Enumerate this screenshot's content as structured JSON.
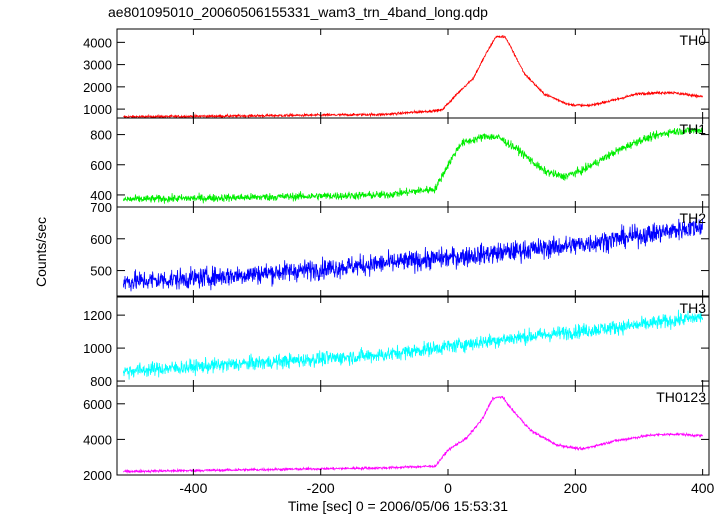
{
  "title": "ae801095010_20060506155331_wam3_trn_4band_long.qdp",
  "ylabel": "Counts/sec",
  "xlabel": "Time [sec] 0 = 2006/05/06 15:53:31",
  "chart_data": {
    "type": "line",
    "x_range": [
      -520,
      410
    ],
    "x_ticks": [
      -400,
      -200,
      0,
      200,
      400
    ],
    "panels": [
      {
        "name": "TH0",
        "color": "#ff0000",
        "ylim": [
          600,
          4600
        ],
        "yticks": [
          1000,
          2000,
          3000,
          4000
        ],
        "noise": 40,
        "keypoints": [
          [
            -510,
            650
          ],
          [
            -300,
            700
          ],
          [
            -100,
            760
          ],
          [
            -10,
            950
          ],
          [
            20,
            1850
          ],
          [
            40,
            2400
          ],
          [
            60,
            3500
          ],
          [
            75,
            4250
          ],
          [
            90,
            4250
          ],
          [
            100,
            3700
          ],
          [
            120,
            2600
          ],
          [
            150,
            1700
          ],
          [
            190,
            1200
          ],
          [
            220,
            1150
          ],
          [
            260,
            1400
          ],
          [
            300,
            1700
          ],
          [
            350,
            1750
          ],
          [
            390,
            1600
          ],
          [
            400,
            1550
          ]
        ]
      },
      {
        "name": "TH1",
        "color": "#00ee00",
        "ylim": [
          320,
          910
        ],
        "yticks": [
          400,
          600,
          800
        ],
        "noise": 18,
        "keypoints": [
          [
            -510,
            370
          ],
          [
            -300,
            385
          ],
          [
            -100,
            400
          ],
          [
            -20,
            440
          ],
          [
            0,
            600
          ],
          [
            20,
            740
          ],
          [
            60,
            790
          ],
          [
            80,
            780
          ],
          [
            110,
            700
          ],
          [
            150,
            560
          ],
          [
            180,
            520
          ],
          [
            210,
            560
          ],
          [
            260,
            680
          ],
          [
            300,
            760
          ],
          [
            350,
            820
          ],
          [
            400,
            830
          ]
        ]
      },
      {
        "name": "TH2",
        "color": "#0000ff",
        "ylim": [
          420,
          700
        ],
        "yticks": [
          500,
          600,
          700
        ],
        "noise": 22,
        "keypoints": [
          [
            -510,
            465
          ],
          [
            -400,
            475
          ],
          [
            -200,
            505
          ],
          [
            0,
            540
          ],
          [
            200,
            580
          ],
          [
            400,
            640
          ]
        ]
      },
      {
        "name": "TH3",
        "color": "#00ffff",
        "ylim": [
          770,
          1310
        ],
        "yticks": [
          800,
          1000,
          1200
        ],
        "noise": 30,
        "keypoints": [
          [
            -510,
            860
          ],
          [
            -300,
            910
          ],
          [
            -100,
            960
          ],
          [
            100,
            1060
          ],
          [
            300,
            1140
          ],
          [
            400,
            1190
          ]
        ]
      },
      {
        "name": "TH0123",
        "color": "#ff00ff",
        "ylim": [
          2000,
          7000
        ],
        "yticks": [
          2000,
          4000,
          6000
        ],
        "noise": 50,
        "keypoints": [
          [
            -510,
            2200
          ],
          [
            -300,
            2300
          ],
          [
            -100,
            2400
          ],
          [
            -20,
            2500
          ],
          [
            0,
            3400
          ],
          [
            30,
            4100
          ],
          [
            55,
            5200
          ],
          [
            70,
            6300
          ],
          [
            85,
            6400
          ],
          [
            100,
            5700
          ],
          [
            130,
            4500
          ],
          [
            170,
            3700
          ],
          [
            210,
            3450
          ],
          [
            260,
            3900
          ],
          [
            320,
            4250
          ],
          [
            360,
            4300
          ],
          [
            400,
            4200
          ]
        ]
      }
    ]
  }
}
